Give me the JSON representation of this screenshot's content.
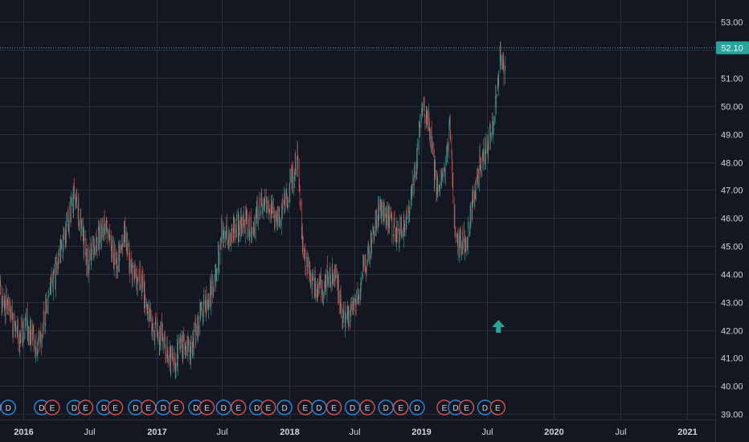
{
  "colors": {
    "background": "#131722",
    "grid": "#2a2e39",
    "axis_text": "#d1d4dc",
    "up": "#26a69a",
    "down": "#ef5350",
    "price_line": "#26a69a",
    "price_label_bg": "#26a69a",
    "earnings_marker": "#ef5350",
    "dividend_marker": "#2196f3",
    "signal_arrow": "#26a69a"
  },
  "price_label": {
    "text": "52.10",
    "value": 52.1
  },
  "chart_data": {
    "type": "candlestick",
    "y_range": [
      38.8,
      53.5
    ],
    "x_range": [
      "2015-10-15",
      "2021-03-20"
    ],
    "y_ticks": [
      {
        "label": "53.00",
        "value": 53
      },
      {
        "label": "52.00",
        "value": 52
      },
      {
        "label": "51.00",
        "value": 51
      },
      {
        "label": "50.00",
        "value": 50
      },
      {
        "label": "49.00",
        "value": 49
      },
      {
        "label": "48.00",
        "value": 48
      },
      {
        "label": "47.00",
        "value": 47
      },
      {
        "label": "46.00",
        "value": 46
      },
      {
        "label": "45.00",
        "value": 45
      },
      {
        "label": "44.00",
        "value": 44
      },
      {
        "label": "43.00",
        "value": 43
      },
      {
        "label": "42.00",
        "value": 42
      },
      {
        "label": "41.00",
        "value": 41
      },
      {
        "label": "40.00",
        "value": 40
      },
      {
        "label": "39.00",
        "value": 39
      }
    ],
    "x_ticks": [
      {
        "label": "2016",
        "date": "2016-01-01",
        "bold": true
      },
      {
        "label": "Jul",
        "date": "2016-07-01",
        "bold": false
      },
      {
        "label": "2017",
        "date": "2017-01-01",
        "bold": true
      },
      {
        "label": "Jul",
        "date": "2017-07-01",
        "bold": false
      },
      {
        "label": "2018",
        "date": "2018-01-01",
        "bold": true
      },
      {
        "label": "Jul",
        "date": "2018-07-01",
        "bold": false
      },
      {
        "label": "2019",
        "date": "2019-01-01",
        "bold": true
      },
      {
        "label": "Jul",
        "date": "2019-07-01",
        "bold": false
      },
      {
        "label": "2020",
        "date": "2020-01-01",
        "bold": true
      },
      {
        "label": "Jul",
        "date": "2020-07-01",
        "bold": false
      },
      {
        "label": "2021",
        "date": "2021-01-01",
        "bold": true
      }
    ],
    "trend_points": [
      [
        "2015-10-15",
        43.6
      ],
      [
        "2015-11-15",
        42.8
      ],
      [
        "2015-12-15",
        41.8
      ],
      [
        "2016-01-10",
        42.3
      ],
      [
        "2016-02-10",
        41.2
      ],
      [
        "2016-03-10",
        43.2
      ],
      [
        "2016-04-10",
        44.6
      ],
      [
        "2016-05-10",
        46.2
      ],
      [
        "2016-05-25",
        46.9
      ],
      [
        "2016-06-25",
        44.2
      ],
      [
        "2016-07-15",
        45.1
      ],
      [
        "2016-08-15",
        45.6
      ],
      [
        "2016-09-15",
        44.4
      ],
      [
        "2016-10-05",
        45.6
      ],
      [
        "2016-10-25",
        43.9
      ],
      [
        "2016-11-20",
        43.7
      ],
      [
        "2016-12-20",
        42.1
      ],
      [
        "2017-01-20",
        41.6
      ],
      [
        "2017-02-20",
        40.7
      ],
      [
        "2017-03-05",
        41.4
      ],
      [
        "2017-04-05",
        41.2
      ],
      [
        "2017-05-10",
        42.8
      ],
      [
        "2017-06-10",
        43.6
      ],
      [
        "2017-06-30",
        45.6
      ],
      [
        "2017-07-25",
        45.3
      ],
      [
        "2017-08-25",
        45.9
      ],
      [
        "2017-09-25",
        45.6
      ],
      [
        "2017-10-15",
        46.6
      ],
      [
        "2017-11-15",
        46.3
      ],
      [
        "2017-12-10",
        46.1
      ],
      [
        "2018-01-05",
        47.2
      ],
      [
        "2018-01-25",
        48.2
      ],
      [
        "2018-02-10",
        44.6
      ],
      [
        "2018-03-10",
        43.6
      ],
      [
        "2018-04-05",
        43.5
      ],
      [
        "2018-05-05",
        44.1
      ],
      [
        "2018-06-05",
        42.2
      ],
      [
        "2018-07-05",
        43.1
      ],
      [
        "2018-08-05",
        44.6
      ],
      [
        "2018-09-05",
        46.3
      ],
      [
        "2018-10-01",
        46.0
      ],
      [
        "2018-11-01",
        45.3
      ],
      [
        "2018-11-25",
        46.3
      ],
      [
        "2018-12-15",
        47.6
      ],
      [
        "2018-12-30",
        49.9
      ],
      [
        "2019-01-20",
        49.6
      ],
      [
        "2019-02-10",
        47.1
      ],
      [
        "2019-03-05",
        47.6
      ],
      [
        "2019-03-20",
        49.2
      ],
      [
        "2019-04-05",
        45.2
      ],
      [
        "2019-05-05",
        45.1
      ],
      [
        "2019-06-05",
        47.6
      ],
      [
        "2019-07-01",
        48.6
      ],
      [
        "2019-07-20",
        49.6
      ],
      [
        "2019-08-05",
        51.7
      ],
      [
        "2019-08-20",
        51.1
      ]
    ],
    "signal_arrow": {
      "date": "2019-08-01",
      "value": 42.1,
      "direction": "up"
    },
    "event_markers": [
      {
        "label": "E",
        "kind": "earnings",
        "date": "2015-10-10"
      },
      {
        "label": "D",
        "kind": "dividend",
        "date": "2015-11-20"
      },
      {
        "label": "D",
        "kind": "dividend",
        "date": "2016-02-20"
      },
      {
        "label": "E",
        "kind": "earnings",
        "date": "2016-03-20"
      },
      {
        "label": "D",
        "kind": "dividend",
        "date": "2016-05-20"
      },
      {
        "label": "E",
        "kind": "earnings",
        "date": "2016-06-20"
      },
      {
        "label": "D",
        "kind": "dividend",
        "date": "2016-08-10"
      },
      {
        "label": "E",
        "kind": "earnings",
        "date": "2016-09-10"
      },
      {
        "label": "D",
        "kind": "dividend",
        "date": "2016-11-05"
      },
      {
        "label": "E",
        "kind": "earnings",
        "date": "2016-12-10"
      },
      {
        "label": "D",
        "kind": "dividend",
        "date": "2017-01-20"
      },
      {
        "label": "E",
        "kind": "earnings",
        "date": "2017-02-25"
      },
      {
        "label": "D",
        "kind": "dividend",
        "date": "2017-04-20"
      },
      {
        "label": "E",
        "kind": "earnings",
        "date": "2017-05-20"
      },
      {
        "label": "D",
        "kind": "dividend",
        "date": "2017-07-05"
      },
      {
        "label": "E",
        "kind": "earnings",
        "date": "2017-08-15"
      },
      {
        "label": "D",
        "kind": "dividend",
        "date": "2017-10-05"
      },
      {
        "label": "E",
        "kind": "earnings",
        "date": "2017-11-05"
      },
      {
        "label": "D",
        "kind": "dividend",
        "date": "2017-12-20"
      },
      {
        "label": "E",
        "kind": "earnings",
        "date": "2018-02-15"
      },
      {
        "label": "D",
        "kind": "dividend",
        "date": "2018-03-25"
      },
      {
        "label": "E",
        "kind": "earnings",
        "date": "2018-05-05"
      },
      {
        "label": "D",
        "kind": "dividend",
        "date": "2018-06-25"
      },
      {
        "label": "E",
        "kind": "earnings",
        "date": "2018-08-05"
      },
      {
        "label": "D",
        "kind": "dividend",
        "date": "2018-09-25"
      },
      {
        "label": "E",
        "kind": "earnings",
        "date": "2018-11-05"
      },
      {
        "label": "D",
        "kind": "dividend",
        "date": "2018-12-20"
      },
      {
        "label": "E",
        "kind": "earnings",
        "date": "2019-03-05"
      },
      {
        "label": "D",
        "kind": "dividend",
        "date": "2019-04-05"
      },
      {
        "label": "E",
        "kind": "earnings",
        "date": "2019-05-05"
      },
      {
        "label": "D",
        "kind": "dividend",
        "date": "2019-06-25"
      },
      {
        "label": "E",
        "kind": "earnings",
        "date": "2019-07-30"
      }
    ]
  }
}
